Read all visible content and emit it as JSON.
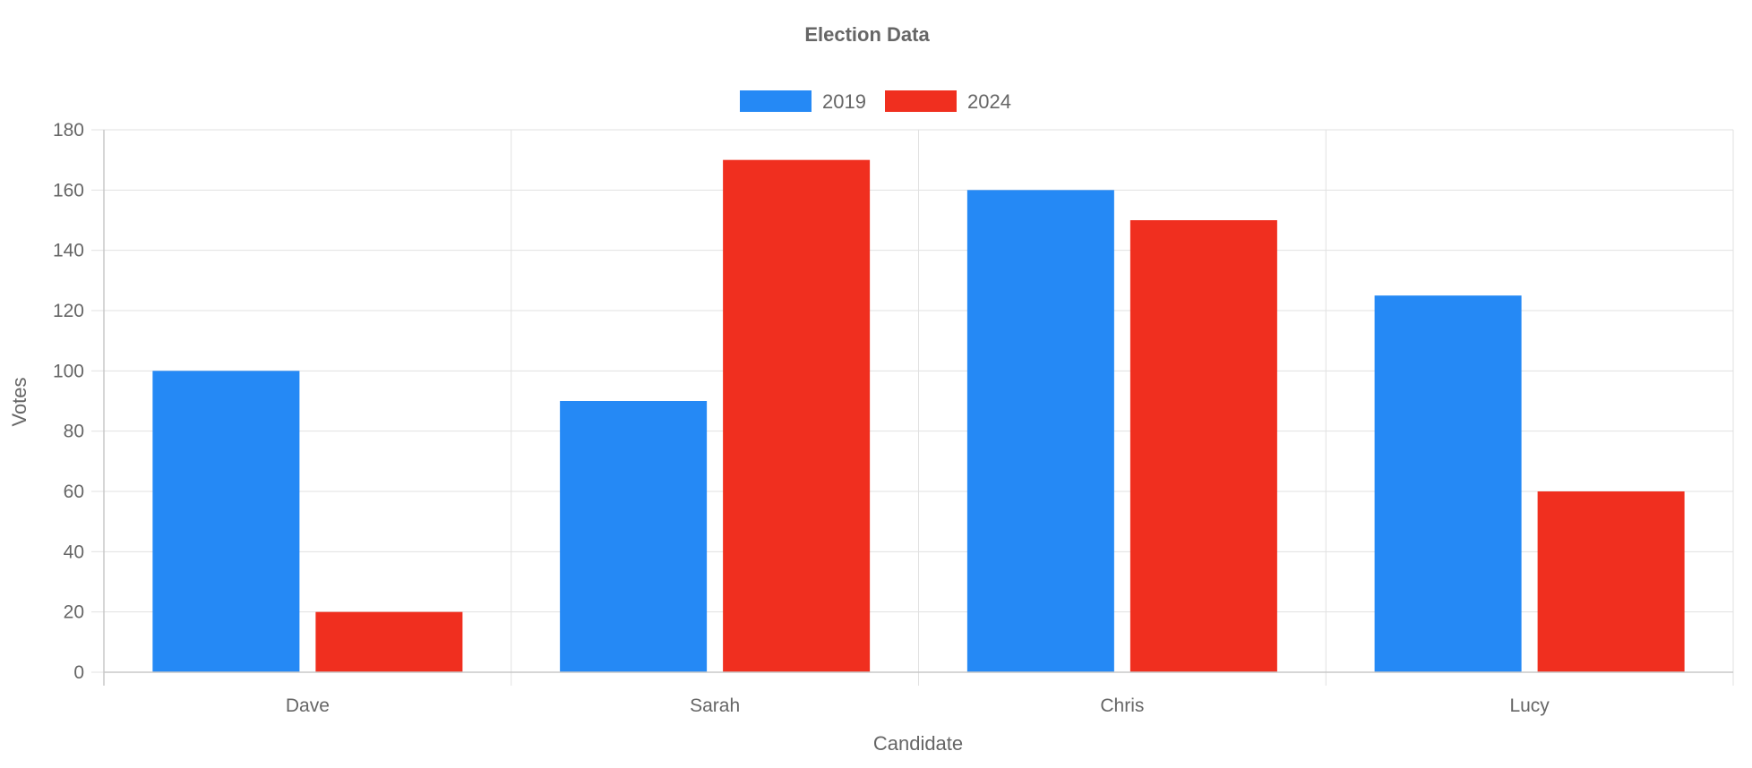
{
  "chart_data": {
    "type": "bar",
    "title": "Election Data",
    "xlabel": "Candidate",
    "ylabel": "Votes",
    "categories": [
      "Dave",
      "Sarah",
      "Chris",
      "Lucy"
    ],
    "series": [
      {
        "name": "2019",
        "color": "#2589f5",
        "values": [
          100,
          90,
          160,
          125
        ]
      },
      {
        "name": "2024",
        "color": "#f02f1f",
        "values": [
          20,
          170,
          150,
          60
        ]
      }
    ],
    "ylim": [
      0,
      180
    ],
    "yticks": [
      "0",
      "20",
      "40",
      "60",
      "80",
      "100",
      "120",
      "140",
      "160",
      "180"
    ],
    "grid": true,
    "legend_position": "top-center"
  }
}
